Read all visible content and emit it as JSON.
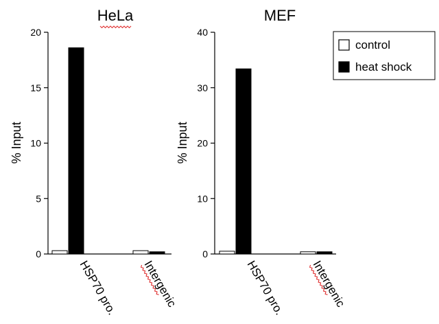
{
  "colors": {
    "control": "#ffffff",
    "heat_shock": "#000000",
    "axis": "#000000",
    "spellcheck_underline": "#e03030"
  },
  "legend": {
    "placement": "top-right",
    "items": [
      {
        "label": "control",
        "color": "#ffffff"
      },
      {
        "label": "heat shock",
        "color": "#000000"
      }
    ]
  },
  "chart_data": [
    {
      "type": "bar",
      "title": "HeLa",
      "xlabel": "",
      "ylabel": "% Input",
      "ylim": [
        0,
        20
      ],
      "yticks": [
        0,
        5,
        10,
        15,
        20
      ],
      "grid": false,
      "categories": [
        "HSP70 pro.",
        "Intergenic"
      ],
      "series": [
        {
          "name": "control",
          "color": "#ffffff",
          "values": [
            0.3,
            0.3
          ]
        },
        {
          "name": "heat shock",
          "color": "#000000",
          "values": [
            18.6,
            0.2
          ]
        }
      ]
    },
    {
      "type": "bar",
      "title": "MEF",
      "xlabel": "",
      "ylabel": "% Input",
      "ylim": [
        0,
        40
      ],
      "yticks": [
        0,
        10,
        20,
        30,
        40
      ],
      "grid": false,
      "categories": [
        "HSP70 pro.",
        "Intergenic"
      ],
      "series": [
        {
          "name": "control",
          "color": "#ffffff",
          "values": [
            0.5,
            0.4
          ]
        },
        {
          "name": "heat shock",
          "color": "#000000",
          "values": [
            33.4,
            0.4
          ]
        }
      ]
    }
  ]
}
